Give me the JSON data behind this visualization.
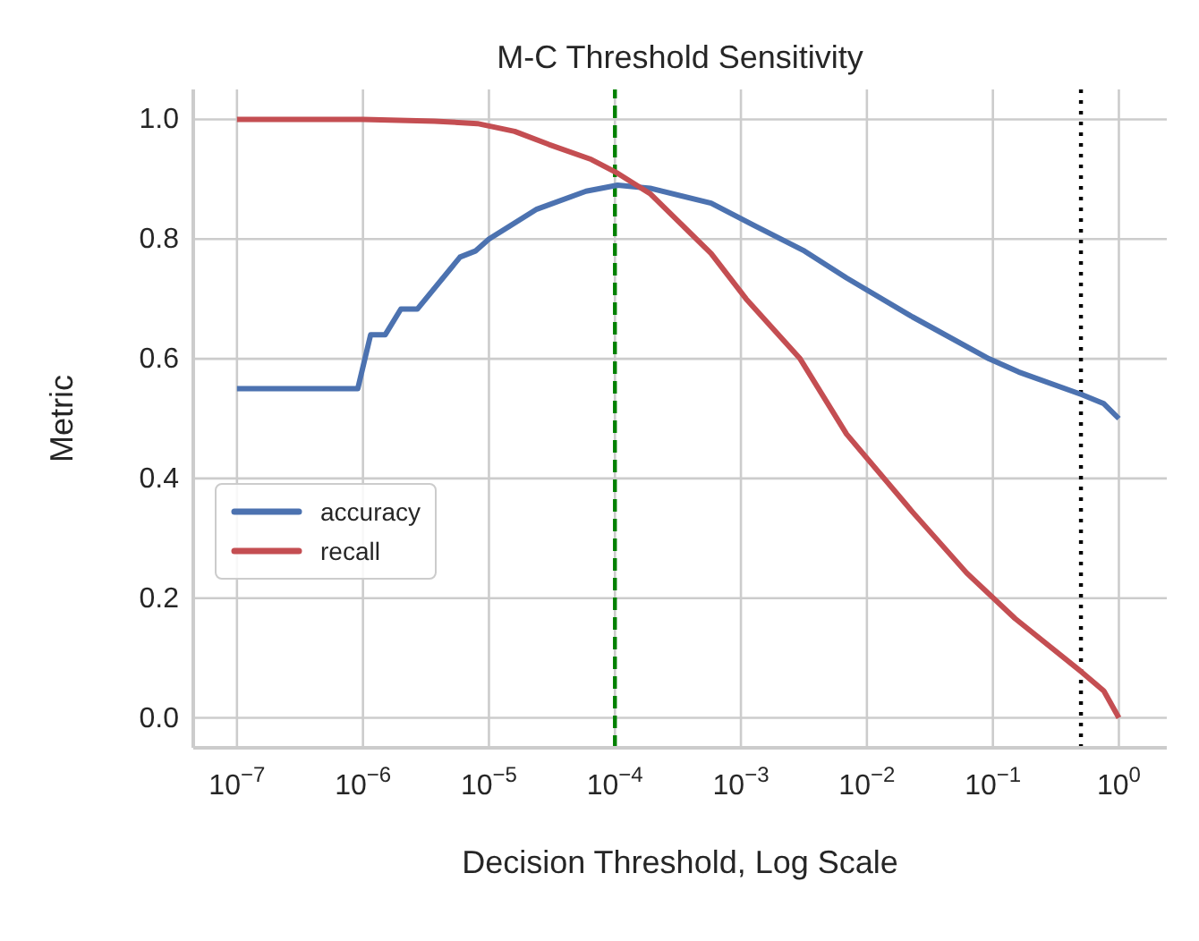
{
  "chart_data": {
    "type": "line",
    "title": "M-C Threshold Sensitivity",
    "xlabel": "Decision Threshold, Log Scale",
    "ylabel": "Metric",
    "log": "x",
    "xlim": [
      4.5e-08,
      2.4
    ],
    "ylim": [
      -0.05,
      1.05
    ],
    "xticks": [
      {
        "value": 1e-07,
        "label": "10$^{−7}$"
      },
      {
        "value": 1e-06,
        "label": "10$^{−6}$"
      },
      {
        "value": 1e-05,
        "label": "10$^{−5}$"
      },
      {
        "value": 0.0001,
        "label": "10$^{−4}$"
      },
      {
        "value": 0.001,
        "label": "10$^{−3}$"
      },
      {
        "value": 0.01,
        "label": "10$^{−2}$"
      },
      {
        "value": 0.1,
        "label": "10$^{−1}$"
      },
      {
        "value": 1,
        "label": "10$^{0}$"
      }
    ],
    "yticks": [
      {
        "value": 0,
        "label": "0.0"
      },
      {
        "value": 0.2,
        "label": "0.2"
      },
      {
        "value": 0.4,
        "label": "0.4"
      },
      {
        "value": 0.6,
        "label": "0.6"
      },
      {
        "value": 0.8,
        "label": "0.8"
      },
      {
        "value": 1,
        "label": "1.0"
      }
    ],
    "grid": true,
    "legend": "center left",
    "marker": "none",
    "line_style": "solid",
    "series": [
      {
        "name": "accuracy",
        "color": "#4c72b0",
        "x": [
          1e-07,
          9.1e-07,
          1.15e-06,
          1.5e-06,
          2e-06,
          2.7e-06,
          5.9e-06,
          7.8e-06,
          1e-05,
          2.4e-05,
          5.9e-05,
          0.000105,
          0.00019,
          0.00058,
          0.00135,
          0.0032,
          0.0069,
          0.023,
          0.093,
          0.16,
          0.51,
          0.76,
          1
        ],
        "values": [
          0.55,
          0.55,
          0.64,
          0.64,
          0.683,
          0.683,
          0.77,
          0.78,
          0.8,
          0.85,
          0.88,
          0.89,
          0.885,
          0.86,
          0.82,
          0.78,
          0.735,
          0.67,
          0.6,
          0.578,
          0.54,
          0.525,
          0.5
        ]
      },
      {
        "name": "recall",
        "color": "#c44e52",
        "x": [
          1e-07,
          1e-06,
          3.7e-06,
          8.1e-06,
          1.6e-05,
          3e-05,
          6.5e-05,
          0.000105,
          0.00019,
          0.00058,
          0.0011,
          0.00295,
          0.0069,
          0.023,
          0.062,
          0.15,
          0.51,
          0.76,
          1
        ],
        "values": [
          1.0,
          1.0,
          0.997,
          0.993,
          0.98,
          0.958,
          0.933,
          0.91,
          0.876,
          0.776,
          0.7,
          0.6,
          0.474,
          0.344,
          0.242,
          0.166,
          0.076,
          0.045,
          0.0
        ]
      }
    ],
    "ref_lines": [
      {
        "axis": "x",
        "value": 0.0001,
        "color": "#008000",
        "line_style": "dashed"
      },
      {
        "axis": "x",
        "value": 0.5,
        "color": "#000000",
        "line_style": "dotted"
      }
    ]
  }
}
